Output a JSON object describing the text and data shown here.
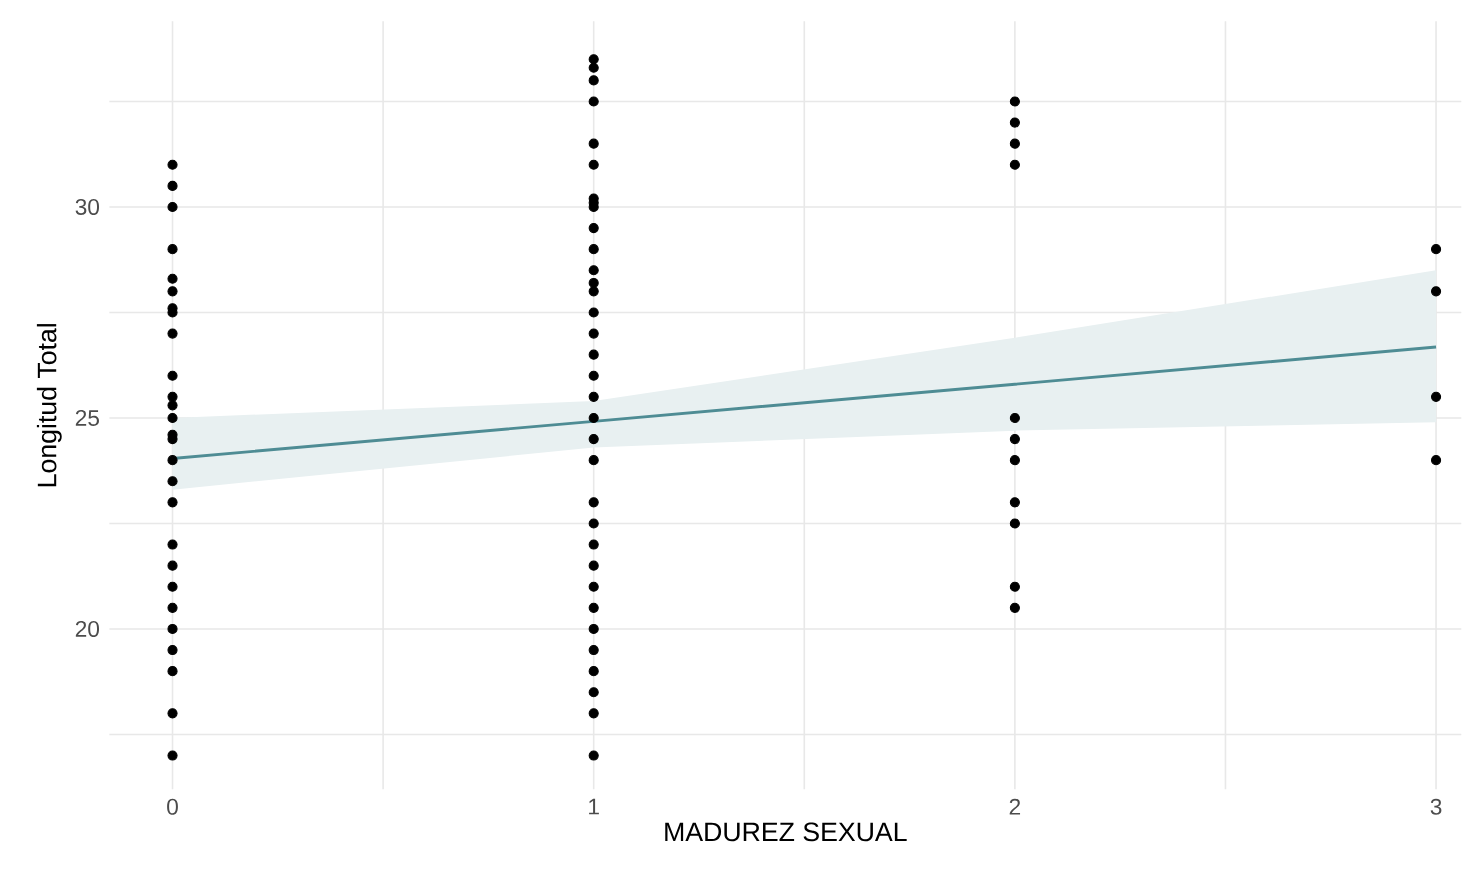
{
  "chart_data": {
    "type": "scatter",
    "xlabel": "MADUREZ SEXUAL",
    "ylabel": "Longitud Total",
    "xlim": [
      -0.15,
      3.06
    ],
    "ylim": [
      16.2,
      34.4
    ],
    "xticks": [
      0,
      {
        "value": 0.5,
        "label": null
      },
      1,
      {
        "value": 1.5,
        "label": null
      },
      2,
      {
        "value": 2.5,
        "label": null
      },
      3
    ],
    "yticks": [
      {
        "value": 17.5,
        "label": null
      },
      20,
      {
        "value": 22.5,
        "label": null
      },
      25,
      {
        "value": 27.5,
        "label": null
      },
      30,
      {
        "value": 32.5,
        "label": null
      }
    ],
    "grid": true,
    "series": [
      {
        "color": "#000000",
        "marker": "circle",
        "x": [
          0,
          0,
          0,
          0,
          0,
          0,
          0,
          0,
          0,
          0,
          0,
          0,
          0,
          0,
          0,
          0,
          0,
          0,
          0,
          0,
          0,
          0,
          0,
          0,
          0,
          0,
          0,
          1,
          1,
          1,
          1,
          1,
          1,
          1,
          1,
          1,
          1,
          1,
          1,
          1,
          1,
          1,
          1,
          1,
          1,
          1,
          1,
          1,
          1,
          1,
          1,
          1,
          1,
          1,
          1,
          1,
          1,
          1,
          1,
          1,
          1,
          2,
          2,
          2,
          2,
          2,
          2,
          2,
          2,
          2,
          2,
          2,
          3,
          3,
          3,
          3
        ],
        "values": [
          31.0,
          30.5,
          30.0,
          29.0,
          28.3,
          28.0,
          27.6,
          27.5,
          27.0,
          26.0,
          25.5,
          25.3,
          25.0,
          24.6,
          24.5,
          24.0,
          23.5,
          23.0,
          22.0,
          21.5,
          21.0,
          20.5,
          20.0,
          19.5,
          19.0,
          18.0,
          17.0,
          33.5,
          33.3,
          33.0,
          32.5,
          31.5,
          31.0,
          30.2,
          30.1,
          30.0,
          29.5,
          29.0,
          28.5,
          28.2,
          28.0,
          27.5,
          27.0,
          26.5,
          26.0,
          25.5,
          25.0,
          24.5,
          24.0,
          23.0,
          22.5,
          22.0,
          21.5,
          21.0,
          20.5,
          20.0,
          19.5,
          19.0,
          18.5,
          18.0,
          17.0,
          32.5,
          32.0,
          31.5,
          31.0,
          25.0,
          24.5,
          24.0,
          23.0,
          22.5,
          21.0,
          20.5,
          29.0,
          28.0,
          25.5,
          24.0
        ]
      },
      {
        "type": "line",
        "marker": "none",
        "color": "#4e8c94",
        "x": [
          0,
          1,
          2,
          3
        ],
        "values": [
          24.04,
          24.92,
          25.8,
          26.68
        ],
        "lower": [
          23.3,
          24.3,
          24.7,
          24.9
        ],
        "upper": [
          25.0,
          25.4,
          26.9,
          28.5
        ]
      }
    ]
  }
}
